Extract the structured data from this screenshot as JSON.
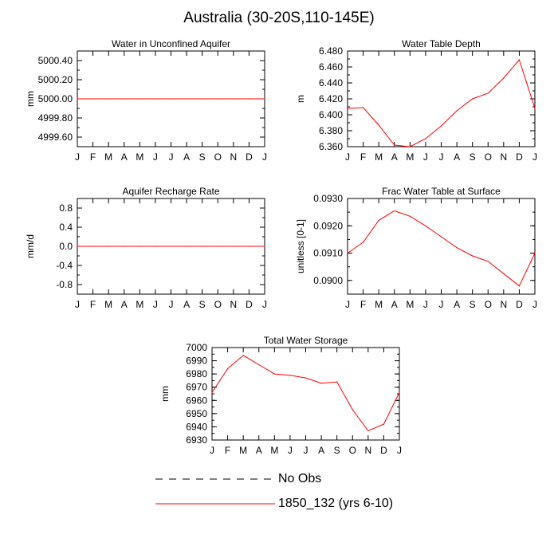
{
  "title": "Australia (30-20S,110-145E)",
  "months": [
    "J",
    "F",
    "M",
    "A",
    "M",
    "J",
    "J",
    "A",
    "S",
    "O",
    "N",
    "D",
    "J"
  ],
  "legend": {
    "obs_label": "No Obs",
    "model_label": "1850_132 (yrs 6-10)",
    "obs_color": "#000000",
    "model_color": "#ff0000"
  },
  "chart_data": [
    {
      "type": "line",
      "title": "Water in Unconfined Aquifer",
      "ylabel": "mm",
      "ylim": [
        4999.5,
        5000.5
      ],
      "yticks": [
        4999.6,
        4999.8,
        5000.0,
        5000.2,
        5000.4
      ],
      "ytick_labels": [
        "4999.60",
        "4999.80",
        "5000.00",
        "5000.20",
        "5000.40"
      ],
      "x": [
        0,
        1,
        2,
        3,
        4,
        5,
        6,
        7,
        8,
        9,
        10,
        11,
        12
      ],
      "series": [
        {
          "values": [
            5000,
            5000,
            5000,
            5000,
            5000,
            5000,
            5000,
            5000,
            5000,
            5000,
            5000,
            5000,
            5000
          ]
        }
      ]
    },
    {
      "type": "line",
      "title": "Water Table Depth",
      "ylabel": "m",
      "ylim": [
        6.36,
        6.48
      ],
      "yticks": [
        6.36,
        6.38,
        6.4,
        6.42,
        6.44,
        6.46,
        6.48
      ],
      "ytick_labels": [
        "6.360",
        "6.380",
        "6.400",
        "6.420",
        "6.440",
        "6.460",
        "6.480"
      ],
      "x": [
        0,
        1,
        2,
        3,
        4,
        5,
        6,
        7,
        8,
        9,
        10,
        11,
        12
      ],
      "series": [
        {
          "values": [
            6.408,
            6.409,
            6.387,
            6.362,
            6.36,
            6.37,
            6.386,
            6.405,
            6.42,
            6.427,
            6.446,
            6.469,
            6.408
          ]
        }
      ]
    },
    {
      "type": "line",
      "title": "Aquifer Recharge Rate",
      "ylabel": "mm/d",
      "ylim": [
        -1.0,
        1.0
      ],
      "yticks": [
        -0.8,
        -0.4,
        0.0,
        0.4,
        0.8
      ],
      "ytick_labels": [
        "-0.8",
        "-0.4",
        "0.0",
        "0.4",
        "0.8"
      ],
      "x": [
        0,
        1,
        2,
        3,
        4,
        5,
        6,
        7,
        8,
        9,
        10,
        11,
        12
      ],
      "series": [
        {
          "values": [
            0,
            0,
            0,
            0,
            0,
            0,
            0,
            0,
            0,
            0,
            0,
            0,
            0
          ]
        }
      ]
    },
    {
      "type": "line",
      "title": "Frac Water Table at Surface",
      "ylabel": "unitless [0-1]",
      "ylim": [
        0.0895,
        0.093
      ],
      "yticks": [
        0.09,
        0.091,
        0.092,
        0.093
      ],
      "ytick_labels": [
        "0.0900",
        "0.0910",
        "0.0920",
        "0.0930"
      ],
      "x": [
        0,
        1,
        2,
        3,
        4,
        5,
        6,
        7,
        8,
        9,
        10,
        11,
        12
      ],
      "series": [
        {
          "values": [
            0.091,
            0.0914,
            0.0922,
            0.09255,
            0.09235,
            0.092,
            0.0916,
            0.0912,
            0.0909,
            0.0907,
            0.09025,
            0.0898,
            0.091
          ]
        }
      ]
    },
    {
      "type": "line",
      "title": "Total Water Storage",
      "ylabel": "mm",
      "ylim": [
        6930,
        7000
      ],
      "yticks": [
        6930,
        6940,
        6950,
        6960,
        6970,
        6980,
        6990,
        7000
      ],
      "ytick_labels": [
        "6930",
        "6940",
        "6950",
        "6960",
        "6970",
        "6980",
        "6990",
        "7000"
      ],
      "x": [
        0,
        1,
        2,
        3,
        4,
        5,
        6,
        7,
        8,
        9,
        10,
        11,
        12
      ],
      "series": [
        {
          "values": [
            6966,
            6984,
            6994,
            6987,
            6980,
            6979,
            6977,
            6973,
            6974,
            6953,
            6937,
            6942,
            6966
          ]
        }
      ]
    }
  ]
}
